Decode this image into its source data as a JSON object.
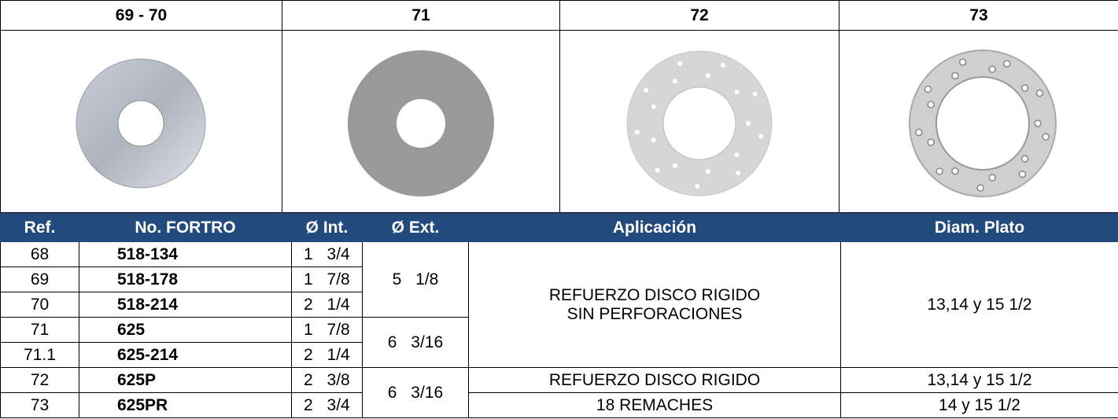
{
  "header": {
    "columns": [
      "69 - 70",
      "71",
      "72",
      "73"
    ]
  },
  "table": {
    "headers": [
      "Ref.",
      "No. FORTRO",
      "Ø Int.",
      "Ø Ext.",
      "Aplicación",
      "Diam. Plato"
    ],
    "rows": [
      {
        "ref": "68",
        "fortro": "518-134",
        "int": "1 3/4"
      },
      {
        "ref": "69",
        "fortro": "518-178",
        "int": "1 7/8"
      },
      {
        "ref": "70",
        "fortro": "518-214",
        "int": "2 1/4"
      },
      {
        "ref": "71",
        "fortro": "625",
        "int": "1 7/8"
      },
      {
        "ref": "71.1",
        "fortro": "625-214",
        "int": "2 1/4"
      },
      {
        "ref": "72",
        "fortro": "625P",
        "int": "2 3/8"
      },
      {
        "ref": "73",
        "fortro": "625PR",
        "int": "2 3/4"
      }
    ],
    "ext": [
      "5 1/8",
      "6 3/16",
      "6 3/16"
    ],
    "application": [
      [
        "REFUERZO DISCO RIGIDO",
        "SIN PERFORACIONES"
      ],
      [
        "REFUERZO DISCO RIGIDO"
      ],
      [
        "18 REMACHES"
      ]
    ],
    "diameter": [
      "13,14 y 15 1/2",
      "13,14 y 15 1/2",
      "14 y 15 1/2"
    ]
  }
}
